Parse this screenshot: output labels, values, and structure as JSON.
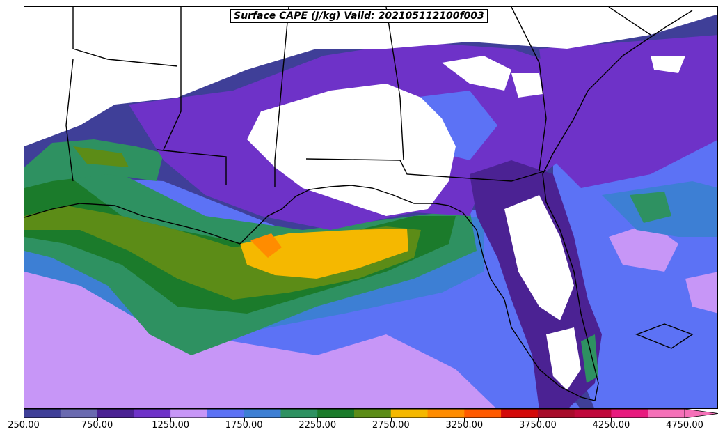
{
  "title": "Surface CAPE (J/kg) Valid: 202105112100f003",
  "colorbar": {
    "ticks": [
      "250.00",
      "750.00",
      "1250.00",
      "1750.00",
      "2250.00",
      "2750.00",
      "3250.00",
      "3750.00",
      "4250.00",
      "4750.00"
    ],
    "colors": [
      "#3f3f98",
      "#6a6ab0",
      "#4b2293",
      "#6e32c8",
      "#c796f7",
      "#5c72f5",
      "#3d7fd4",
      "#2e9161",
      "#1b7b2b",
      "#5c8c17",
      "#f5b800",
      "#ff8c00",
      "#ff5a00",
      "#d40a0a",
      "#a80c2b",
      "#c0083c",
      "#e81a7e",
      "#f570b8"
    ]
  },
  "chart_data": {
    "type": "map",
    "title": "Surface CAPE (J/kg) Valid: 202105112100f003",
    "variable": "Surface CAPE",
    "units": "J/kg",
    "valid": "202105112100f003",
    "colorbar_range": [
      250,
      4750
    ],
    "colorbar_ticks": [
      250,
      750,
      1250,
      1750,
      2250,
      2750,
      3250,
      3750,
      4250,
      4750
    ],
    "extend": "max"
  }
}
